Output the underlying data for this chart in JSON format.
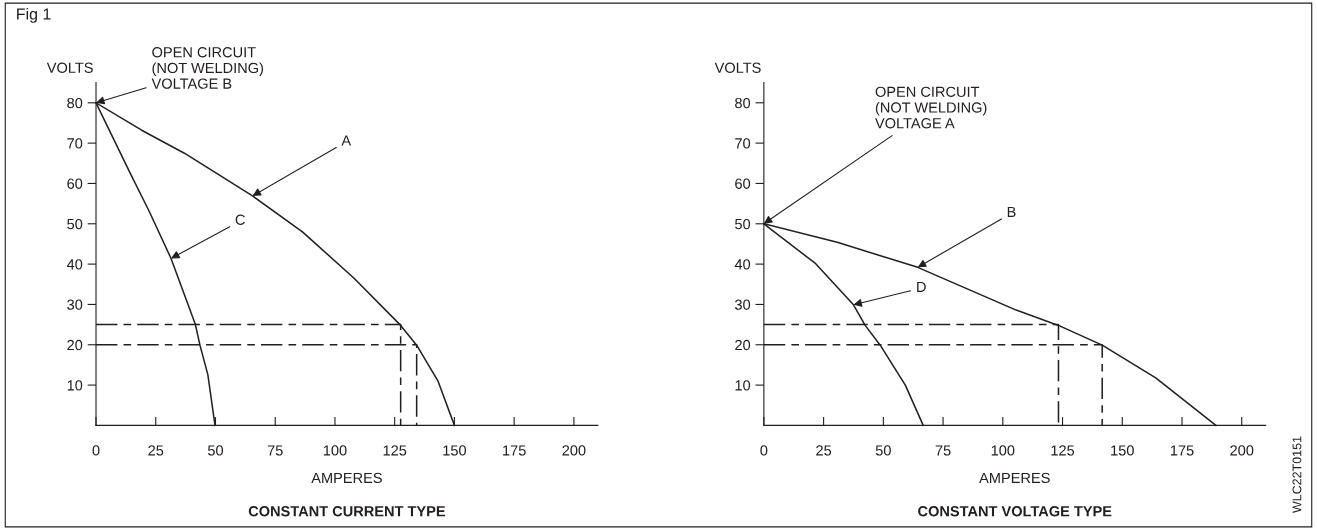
{
  "chart_data": [
    {
      "type": "line",
      "title": "CONSTANT CURRENT TYPE",
      "xlabel": "AMPERES",
      "ylabel": "VOLTS",
      "xlim": [
        0,
        210
      ],
      "ylim": [
        0,
        85
      ],
      "xticks": [
        0,
        25,
        50,
        75,
        100,
        125,
        150,
        175,
        200
      ],
      "yticks": [
        10,
        20,
        30,
        40,
        50,
        60,
        70,
        80
      ],
      "marker": "none",
      "series": [
        {
          "color": "#231f20",
          "x": [
            0,
            19.1,
            37,
            65.5,
            86.4,
            108,
            127.5,
            134.2,
            143.2,
            150
          ],
          "values": [
            80,
            73.2,
            67.5,
            56.9,
            48,
            36.5,
            24.8,
            19.9,
            10.9,
            0
          ]
        },
        {
          "color": "#231f20",
          "x": [
            0,
            14.6,
            22.1,
            31.4,
            41.6,
            43.5,
            46.8,
            49.8
          ],
          "values": [
            80,
            62.2,
            53.3,
            41.4,
            25,
            19.9,
            12.6,
            0
          ]
        },
        {
          "color": "#231f20",
          "line_style": "dashed",
          "x": [
            0,
            127.5,
            127.5
          ],
          "values": [
            25,
            25,
            0
          ]
        },
        {
          "color": "#231f20",
          "line_style": "dashed",
          "x": [
            0,
            134.2,
            134.2
          ],
          "values": [
            20,
            20,
            0
          ]
        }
      ],
      "annotations": [
        "Fig 1",
        {
          "text": "OPEN CIRCUIT\n(NOT WELDING)\nVOLTAGE B",
          "x": 0,
          "y": 80
        },
        {
          "text": "A",
          "x": 65.5,
          "y": 56.9
        },
        {
          "text": "C",
          "x": 31.4,
          "y": 41.4
        }
      ]
    },
    {
      "type": "line",
      "title": "CONSTANT VOLTAGE TYPE",
      "xlabel": "AMPERES",
      "ylabel": "VOLTS",
      "xlim": [
        0,
        210
      ],
      "ylim": [
        0,
        85
      ],
      "xticks": [
        0,
        25,
        50,
        75,
        100,
        125,
        150,
        175,
        200
      ],
      "yticks": [
        10,
        20,
        30,
        40,
        50,
        60,
        70,
        80
      ],
      "marker": "none",
      "series": [
        {
          "color": "#231f20",
          "x": [
            0,
            30.7,
            64.4,
            105.6,
            123.3,
            141.6,
            164,
            189.2
          ],
          "values": [
            50,
            45.4,
            39.2,
            28.6,
            24.8,
            19.9,
            11.8,
            0
          ]
        },
        {
          "color": "#231f20",
          "x": [
            0,
            21.7,
            37.5,
            42.4,
            48.7,
            59.2,
            66.7
          ],
          "values": [
            50,
            40.1,
            29.9,
            24.8,
            19.9,
            10,
            0
          ]
        },
        {
          "color": "#231f20",
          "line_style": "dashed",
          "x": [
            0,
            123.3,
            123.3
          ],
          "values": [
            25,
            25,
            0
          ]
        },
        {
          "color": "#231f20",
          "line_style": "dashed",
          "x": [
            0,
            141.6,
            141.6
          ],
          "values": [
            20,
            20,
            0
          ]
        }
      ],
      "annotations": [
        {
          "text": "OPEN CIRCUIT\n(NOT WELDING)\nVOLTAGE A",
          "x": 0,
          "y": 50
        },
        {
          "text": "B",
          "x": 64.4,
          "y": 39.2
        },
        {
          "text": "D",
          "x": 37.5,
          "y": 29.9
        },
        "WLC22T0151"
      ]
    }
  ]
}
